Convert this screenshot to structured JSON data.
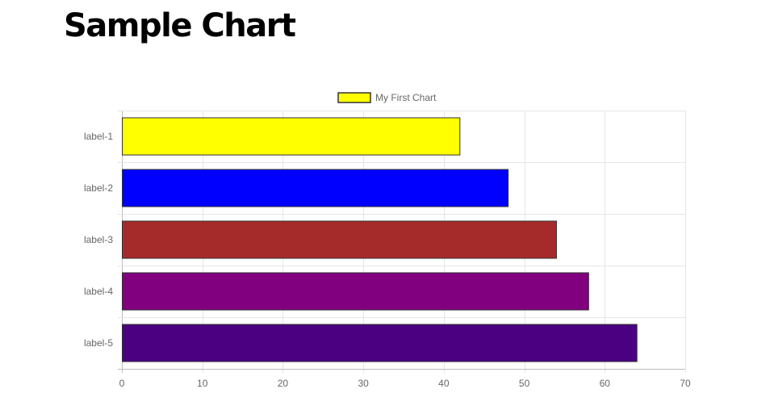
{
  "page": {
    "title": "Sample Chart"
  },
  "chart_data": {
    "type": "bar",
    "orientation": "horizontal",
    "title": "",
    "xlabel": "",
    "ylabel": "",
    "categories": [
      "label-1",
      "label-2",
      "label-3",
      "label-4",
      "label-5"
    ],
    "series": [
      {
        "name": "My First Chart",
        "values": [
          42,
          48,
          54,
          58,
          64
        ],
        "colors": [
          "#ffff00",
          "#0000ff",
          "#a52a2a",
          "#800080",
          "#4b0082"
        ],
        "legend_color": "#ffff00"
      }
    ],
    "xlim": [
      0,
      70
    ],
    "x_ticks": [
      0,
      10,
      20,
      30,
      40,
      50,
      60,
      70
    ],
    "grid": true,
    "legend": "top-center"
  }
}
